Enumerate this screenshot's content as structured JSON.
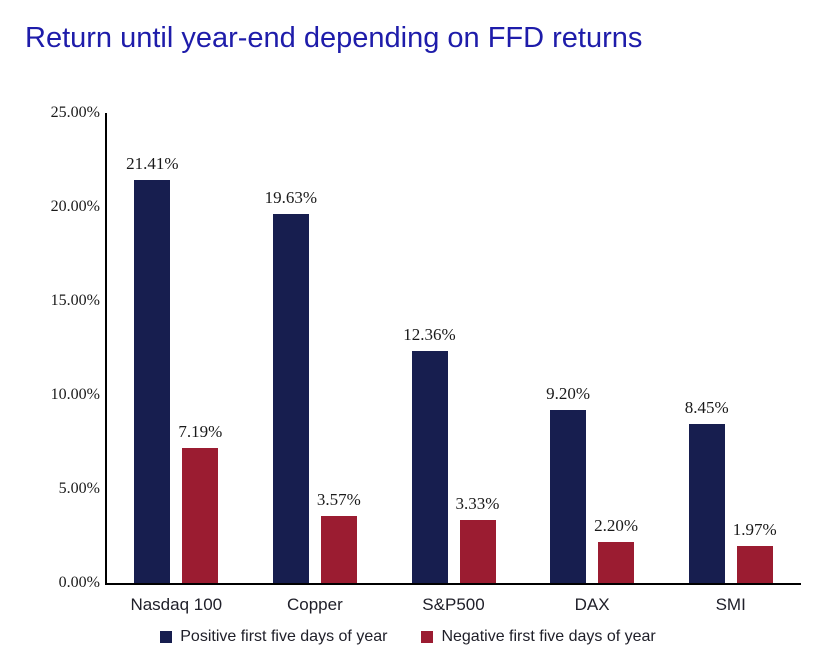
{
  "chart_data": {
    "type": "bar",
    "title": "Return until year-end depending on FFD returns",
    "categories": [
      "Nasdaq 100",
      "Copper",
      "S&P500",
      "DAX",
      "SMI"
    ],
    "series": [
      {
        "name": "Positive first five days of year",
        "color": "#171e4f",
        "values": [
          21.41,
          19.63,
          12.36,
          9.2,
          8.45
        ],
        "labels": [
          "21.41%",
          "19.63%",
          "12.36%",
          "9.20%",
          "8.45%"
        ]
      },
      {
        "name": "Negative first five days of year",
        "color": "#9b1c31",
        "values": [
          7.19,
          3.57,
          3.33,
          2.2,
          1.97
        ],
        "labels": [
          "7.19%",
          "3.57%",
          "3.33%",
          "2.20%",
          "1.97%"
        ]
      }
    ],
    "xlabel": "",
    "ylabel": "",
    "ylim": [
      0,
      25
    ],
    "yticks": [
      {
        "value": 25,
        "label": "25.00%"
      },
      {
        "value": 20,
        "label": "20.00%"
      },
      {
        "value": 15,
        "label": "15.00%"
      },
      {
        "value": 10,
        "label": "10.00%"
      },
      {
        "value": 5,
        "label": "5.00%"
      },
      {
        "value": 0,
        "label": "0.00%"
      }
    ],
    "grid": false,
    "legend_position": "bottom",
    "colors": {
      "title": "#1e1caa",
      "axis": "#000000",
      "value_label": "#1a1a1a",
      "tick_label": "#1a1a1a",
      "category_label": "#20202a",
      "legend_label": "#20202a",
      "background": "#ffffff"
    }
  }
}
